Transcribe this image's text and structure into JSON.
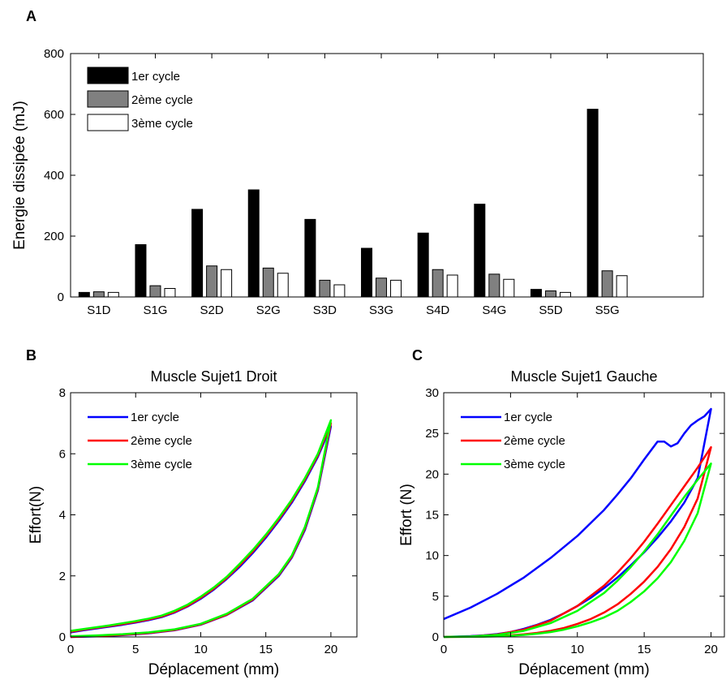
{
  "chart_data": [
    {
      "panel": "A",
      "type": "bar",
      "title": "",
      "xlabel": "",
      "ylabel": "Energie dissipée (mJ)",
      "ylim": [
        0,
        800
      ],
      "yticks": [
        0,
        200,
        400,
        600,
        800
      ],
      "categories": [
        "S1D",
        "S1G",
        "S2D",
        "S2G",
        "S3D",
        "S3G",
        "S4D",
        "S4G",
        "S5D",
        "S5G"
      ],
      "legend_position": "top-left",
      "series": [
        {
          "name": "1er cycle",
          "color": "#000000",
          "values": [
            15,
            172,
            288,
            352,
            255,
            160,
            210,
            305,
            25,
            617
          ]
        },
        {
          "name": "2ème cycle",
          "color": "#808080",
          "values": [
            17,
            37,
            102,
            95,
            55,
            62,
            90,
            75,
            20,
            86
          ]
        },
        {
          "name": "3ème cycle",
          "color": "#ffffff",
          "values": [
            15,
            28,
            90,
            78,
            40,
            55,
            72,
            58,
            15,
            70
          ]
        }
      ]
    },
    {
      "panel": "B",
      "type": "line",
      "title": "Muscle Sujet1 Droit",
      "xlabel": "Déplacement (mm)",
      "ylabel": "Effort(N)",
      "xlim": [
        0,
        22
      ],
      "ylim": [
        0,
        8
      ],
      "xticks": [
        0,
        5,
        10,
        15,
        20
      ],
      "yticks": [
        0,
        2,
        4,
        6,
        8
      ],
      "legend_position": "top-left",
      "series": [
        {
          "name": "1er cycle",
          "color": "#0000ff",
          "loading_x": [
            0,
            2,
            4,
            6,
            8,
            10,
            12,
            14,
            16,
            17,
            18,
            19,
            20
          ],
          "loading_y": [
            0.0,
            0.02,
            0.06,
            0.12,
            0.22,
            0.4,
            0.72,
            1.2,
            2.0,
            2.6,
            3.5,
            4.8,
            6.9
          ],
          "unloading_x": [
            20,
            19,
            18,
            17,
            16,
            15,
            14,
            13,
            12,
            11,
            10,
            9,
            8,
            7,
            6,
            5,
            4,
            3,
            2,
            1,
            0
          ],
          "unloading_y": [
            6.9,
            5.9,
            5.1,
            4.4,
            3.8,
            3.25,
            2.75,
            2.3,
            1.9,
            1.55,
            1.25,
            1.0,
            0.8,
            0.65,
            0.55,
            0.47,
            0.4,
            0.34,
            0.28,
            0.22,
            0.15
          ]
        },
        {
          "name": "2ème cycle",
          "color": "#ff0000",
          "loading_x": [
            0,
            2,
            4,
            6,
            8,
            10,
            12,
            14,
            16,
            17,
            18,
            19,
            20
          ],
          "loading_y": [
            0.0,
            0.03,
            0.07,
            0.13,
            0.23,
            0.41,
            0.73,
            1.22,
            2.03,
            2.63,
            3.55,
            4.85,
            7.0
          ],
          "unloading_x": [
            20,
            19,
            18,
            17,
            16,
            15,
            14,
            13,
            12,
            11,
            10,
            9,
            8,
            7,
            6,
            5,
            4,
            3,
            2,
            1,
            0
          ],
          "unloading_y": [
            7.0,
            5.95,
            5.15,
            4.45,
            3.85,
            3.3,
            2.8,
            2.35,
            1.93,
            1.58,
            1.28,
            1.02,
            0.82,
            0.67,
            0.57,
            0.49,
            0.42,
            0.36,
            0.3,
            0.24,
            0.17
          ]
        },
        {
          "name": "3ème cycle",
          "color": "#00ff00",
          "loading_x": [
            0,
            2,
            4,
            6,
            8,
            10,
            12,
            14,
            16,
            17,
            18,
            19,
            20
          ],
          "loading_y": [
            0.02,
            0.05,
            0.09,
            0.15,
            0.25,
            0.43,
            0.76,
            1.25,
            2.06,
            2.67,
            3.6,
            4.9,
            7.1
          ],
          "unloading_x": [
            20,
            19,
            18,
            17,
            16,
            15,
            14,
            13,
            12,
            11,
            10,
            9,
            8,
            7,
            6,
            5,
            4,
            3,
            2,
            1,
            0
          ],
          "unloading_y": [
            7.1,
            6.0,
            5.2,
            4.5,
            3.9,
            3.35,
            2.85,
            2.4,
            1.97,
            1.62,
            1.32,
            1.06,
            0.86,
            0.7,
            0.6,
            0.52,
            0.45,
            0.38,
            0.32,
            0.26,
            0.2
          ]
        }
      ]
    },
    {
      "panel": "C",
      "type": "line",
      "title": "Muscle Sujet1 Gauche",
      "xlabel": "Déplacement (mm)",
      "ylabel": "Effort (N)",
      "xlim": [
        0,
        21
      ],
      "ylim": [
        0,
        30
      ],
      "xticks": [
        0,
        5,
        10,
        15,
        20
      ],
      "yticks": [
        0,
        5,
        10,
        15,
        20,
        25,
        30
      ],
      "legend_position": "top-left",
      "series": [
        {
          "name": "1er cycle",
          "color": "#0000ff",
          "loading_x": [
            0,
            2,
            4,
            6,
            8,
            10,
            12,
            13,
            14,
            15,
            16,
            16.5,
            17,
            17.5,
            18,
            18.5,
            19,
            19.5,
            20
          ],
          "loading_y": [
            2.2,
            3.6,
            5.3,
            7.3,
            9.7,
            12.4,
            15.6,
            17.5,
            19.5,
            21.8,
            24.0,
            24.0,
            23.4,
            23.8,
            25.0,
            26.0,
            26.6,
            27.1,
            28.0
          ],
          "unloading_x": [
            20,
            19,
            18,
            17,
            16,
            15,
            14,
            13,
            12,
            11,
            10,
            9,
            8,
            7,
            6,
            5,
            4,
            3,
            2,
            1,
            0
          ],
          "unloading_y": [
            28.0,
            19.5,
            16.5,
            14.2,
            12.2,
            10.4,
            8.8,
            7.3,
            6.0,
            4.8,
            3.8,
            2.9,
            2.1,
            1.5,
            1.0,
            0.6,
            0.35,
            0.2,
            0.1,
            0.05,
            0.0
          ]
        },
        {
          "name": "2ème cycle",
          "color": "#ff0000",
          "loading_x": [
            0,
            2,
            4,
            6,
            8,
            10,
            12,
            13,
            14,
            15,
            16,
            17,
            18,
            19,
            20
          ],
          "loading_y": [
            0.0,
            0.05,
            0.3,
            0.9,
            2.0,
            3.8,
            6.3,
            7.9,
            9.7,
            11.7,
            13.9,
            16.2,
            18.5,
            20.8,
            23.3
          ],
          "unloading_x": [
            20,
            19,
            18,
            17,
            16,
            15,
            14,
            13,
            12,
            11,
            10,
            9,
            8,
            7,
            6,
            5,
            4,
            3,
            2,
            1,
            0
          ],
          "unloading_y": [
            23.3,
            17.0,
            13.5,
            10.8,
            8.6,
            6.8,
            5.3,
            4.0,
            3.0,
            2.2,
            1.6,
            1.1,
            0.75,
            0.5,
            0.32,
            0.2,
            0.12,
            0.06,
            0.03,
            0.01,
            0.0
          ]
        },
        {
          "name": "3ème cycle",
          "color": "#00ff00",
          "loading_x": [
            0,
            2,
            4,
            6,
            8,
            10,
            12,
            13,
            14,
            15,
            16,
            17,
            18,
            19,
            20
          ],
          "loading_y": [
            0.0,
            0.05,
            0.25,
            0.75,
            1.7,
            3.2,
            5.4,
            6.9,
            8.6,
            10.5,
            12.6,
            14.9,
            17.2,
            19.3,
            21.3
          ],
          "unloading_x": [
            20,
            19,
            18,
            17,
            16,
            15,
            14,
            13,
            12,
            11,
            10,
            9,
            8,
            7,
            6,
            5,
            4,
            3,
            2,
            1,
            0
          ],
          "unloading_y": [
            21.3,
            15.2,
            11.8,
            9.2,
            7.2,
            5.6,
            4.3,
            3.2,
            2.4,
            1.8,
            1.3,
            0.9,
            0.6,
            0.4,
            0.25,
            0.15,
            0.08,
            0.04,
            0.02,
            0.01,
            0.0
          ]
        }
      ]
    }
  ]
}
